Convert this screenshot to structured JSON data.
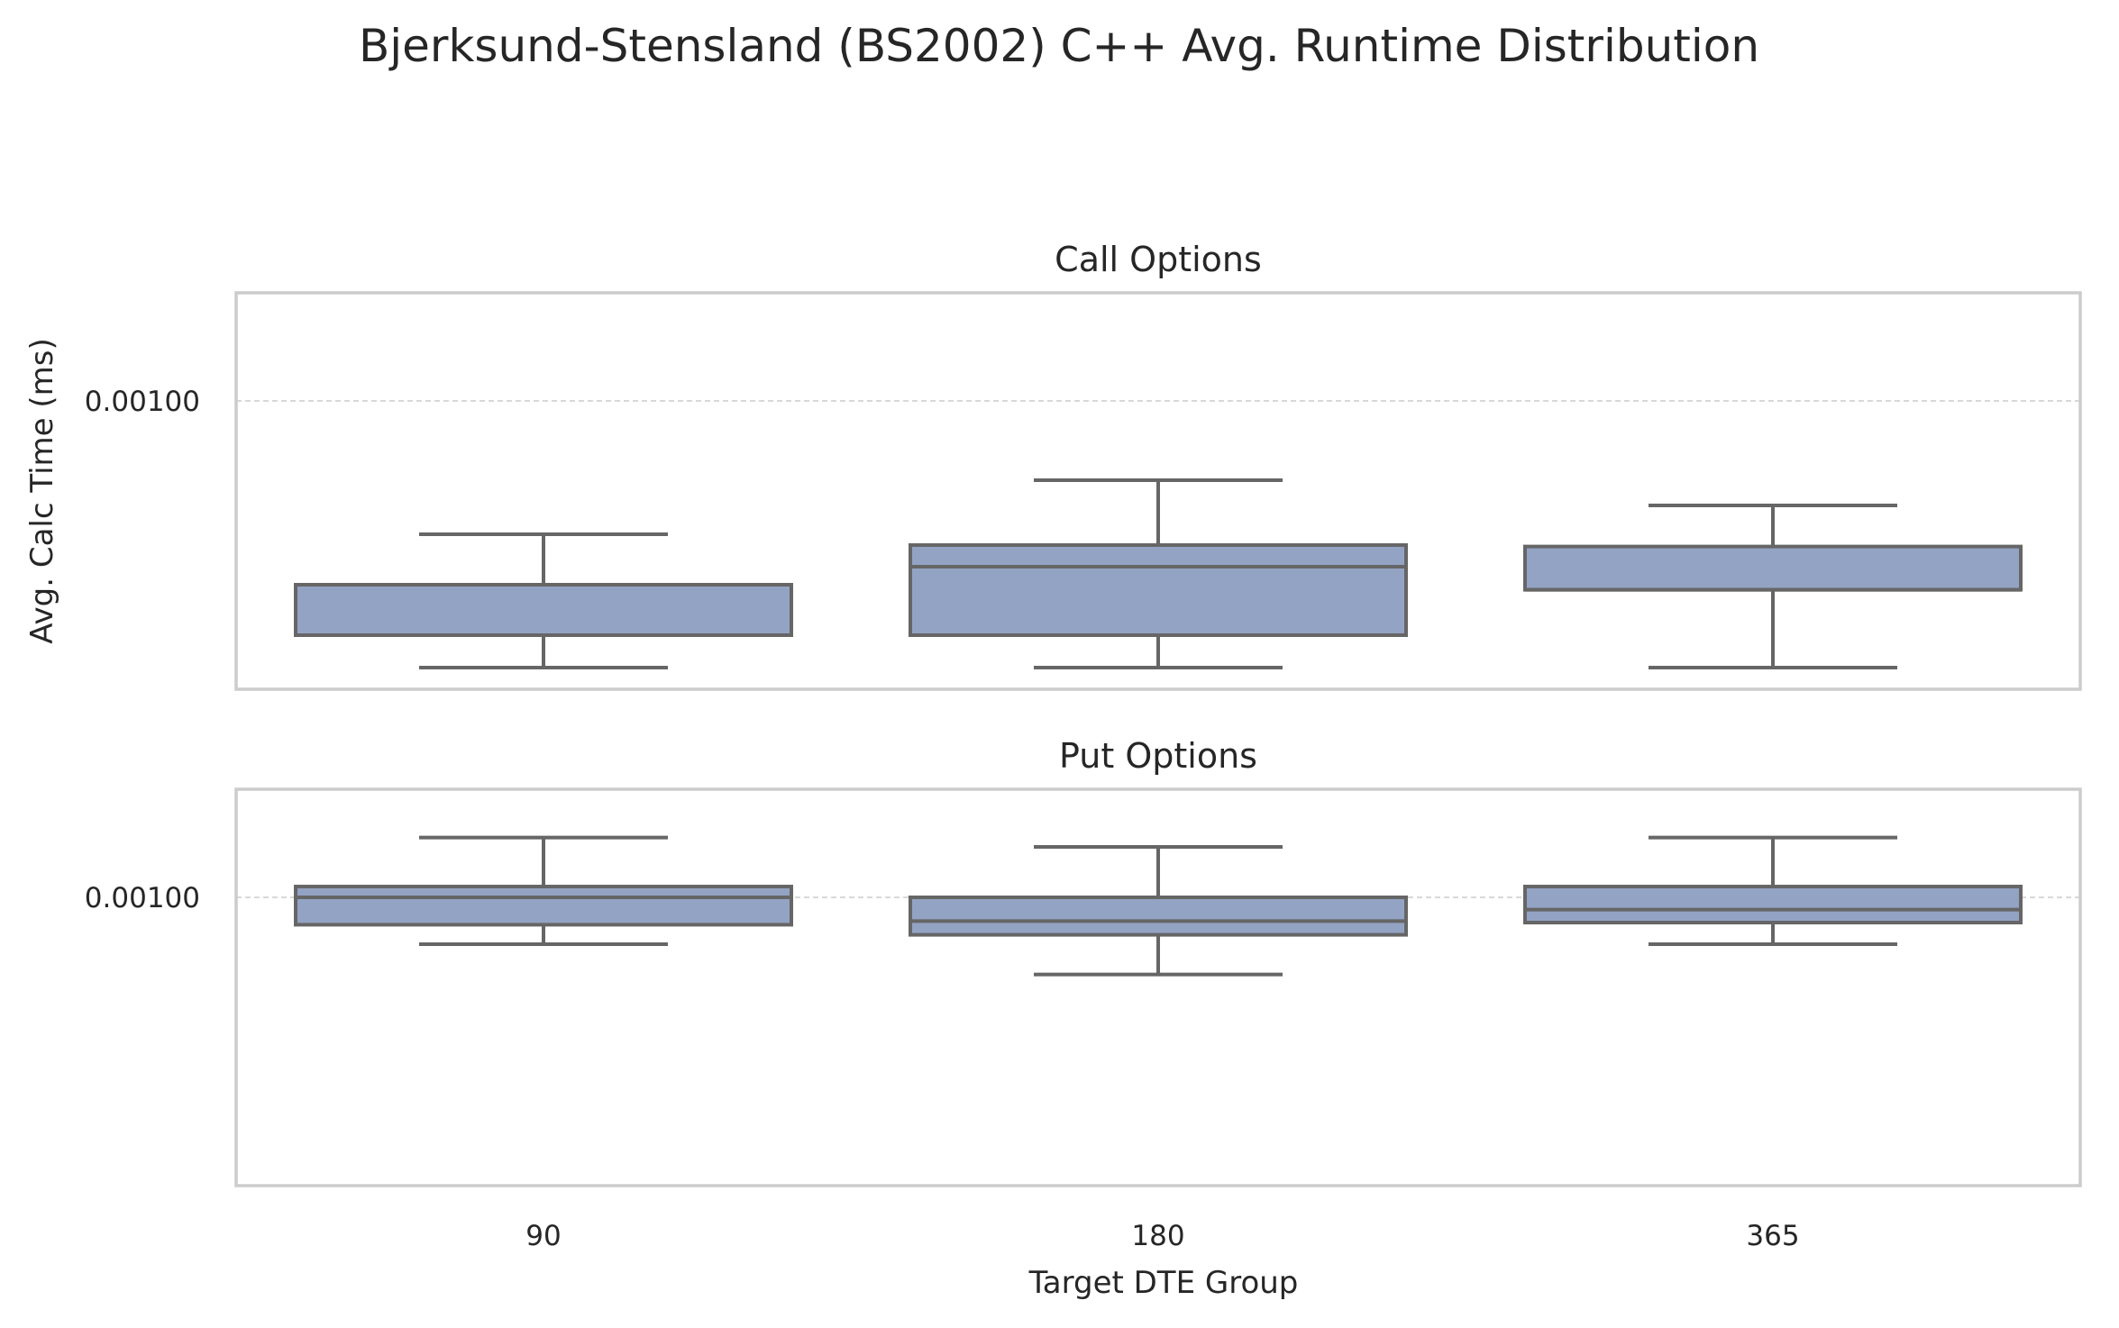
{
  "figure": {
    "suptitle": "Bjerksund-Stensland (BS2002) C++ Avg. Runtime Distribution",
    "shared_xlabel": "Target DTE Group",
    "shared_ylabel": "Avg. Calc Time (ms)",
    "box_color": "#93a3c4",
    "line_color": "#666666",
    "frame_color": "#cccccc"
  },
  "chart_data": [
    {
      "type": "box",
      "title": "Call Options",
      "categories": [
        "90",
        "180",
        "365"
      ],
      "ylim": [
        0.0006,
        0.00115
      ],
      "y_ticks": [
        0.001
      ],
      "y_tick_labels": [
        "0.00100"
      ],
      "grid": "y",
      "boxes": [
        {
          "category": "90",
          "whislo": 0.00063,
          "q1": 0.000675,
          "med": 0.000675,
          "q3": 0.000745,
          "whishi": 0.000815
        },
        {
          "category": "180",
          "whislo": 0.00063,
          "q1": 0.000675,
          "med": 0.00077,
          "q3": 0.0008,
          "whishi": 0.00089
        },
        {
          "category": "365",
          "whislo": 0.00063,
          "q1": 0.000738,
          "med": 0.000738,
          "q3": 0.000798,
          "whishi": 0.000855
        }
      ]
    },
    {
      "type": "box",
      "title": "Put Options",
      "categories": [
        "90",
        "180",
        "365"
      ],
      "xlabel": "Target DTE Group",
      "ylim": [
        0.0006,
        0.00115
      ],
      "y_ticks": [
        0.001
      ],
      "y_tick_labels": [
        "0.00100"
      ],
      "grid": "y",
      "boxes": [
        {
          "category": "90",
          "whislo": 0.000935,
          "q1": 0.000962,
          "med": 0.001,
          "q3": 0.001015,
          "whishi": 0.001083
        },
        {
          "category": "180",
          "whislo": 0.000893,
          "q1": 0.000948,
          "med": 0.000967,
          "q3": 0.001,
          "whishi": 0.00107
        },
        {
          "category": "365",
          "whislo": 0.000935,
          "q1": 0.000965,
          "med": 0.000983,
          "q3": 0.001015,
          "whishi": 0.001083
        }
      ]
    }
  ]
}
